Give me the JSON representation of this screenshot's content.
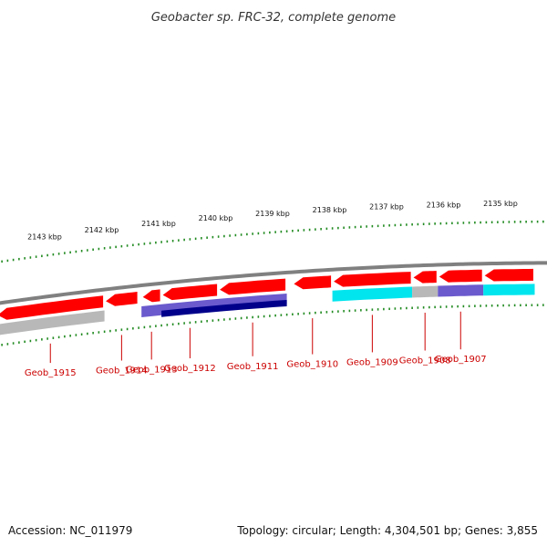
{
  "title": "Geobacter sp. FRC-32, complete genome",
  "footer": {
    "accession": "Accession: NC_011979",
    "summary": "Topology: circular; Length: 4,304,501 bp; Genes: 3,855"
  },
  "scale": {
    "unit": "kbp",
    "ticks": [
      {
        "kbp": 2143,
        "label": "2143 kbp"
      },
      {
        "kbp": 2142,
        "label": "2142 kbp"
      },
      {
        "kbp": 2141,
        "label": "2141 kbp"
      },
      {
        "kbp": 2140,
        "label": "2140 kbp"
      },
      {
        "kbp": 2139,
        "label": "2139 kbp"
      },
      {
        "kbp": 2138,
        "label": "2138 kbp"
      },
      {
        "kbp": 2137,
        "label": "2137 kbp"
      },
      {
        "kbp": 2136,
        "label": "2136 kbp"
      },
      {
        "kbp": 2135,
        "label": "2135 kbp"
      }
    ]
  },
  "genes": [
    {
      "label": "Geob_1915",
      "start_kbp": 2143.85,
      "end_kbp": 2141.95,
      "color": "#ff0000"
    },
    {
      "label": "Geob_1914",
      "start_kbp": 2141.95,
      "end_kbp": 2141.35,
      "color": "#ff0000"
    },
    {
      "label": "Geob_1913",
      "start_kbp": 2141.3,
      "end_kbp": 2140.95,
      "color": "#ff0000"
    },
    {
      "label": "Geob_1912",
      "start_kbp": 2140.95,
      "end_kbp": 2139.95,
      "color": "#ff0000"
    },
    {
      "label": "Geob_1911",
      "start_kbp": 2139.95,
      "end_kbp": 2138.75,
      "color": "#ff0000"
    },
    {
      "label": "Geob_1910",
      "start_kbp": 2138.65,
      "end_kbp": 2137.95,
      "color": "#ff0000"
    },
    {
      "label": "Geob_1909",
      "start_kbp": 2137.95,
      "end_kbp": 2136.55,
      "color": "#ff0000"
    },
    {
      "label": "Geob_1908",
      "start_kbp": 2136.55,
      "end_kbp": 2136.1,
      "color": "#ff0000"
    },
    {
      "label": "Geob_1907",
      "start_kbp": 2136.1,
      "end_kbp": 2135.3,
      "color": "#ff0000"
    },
    {
      "label": "",
      "start_kbp": 2135.3,
      "end_kbp": 2134.4,
      "color": "#ff0000"
    }
  ],
  "annotations": [
    {
      "start_kbp": 2143.85,
      "end_kbp": 2141.95,
      "row": 0,
      "color": "#b8b8b8"
    },
    {
      "start_kbp": 2141.3,
      "end_kbp": 2138.75,
      "row": 0,
      "color": "#6a5acd"
    },
    {
      "start_kbp": 2140.95,
      "end_kbp": 2138.75,
      "row": 1,
      "color": "#00008b"
    },
    {
      "start_kbp": 2137.95,
      "end_kbp": 2136.55,
      "row": 0,
      "color": "#00e5ee"
    },
    {
      "start_kbp": 2136.55,
      "end_kbp": 2136.1,
      "row": 0,
      "color": "#b8b8b8"
    },
    {
      "start_kbp": 2136.1,
      "end_kbp": 2135.3,
      "row": 0,
      "color": "#6a5acd"
    },
    {
      "start_kbp": 2135.3,
      "end_kbp": 2134.4,
      "row": 0,
      "color": "#00e5ee"
    }
  ],
  "colors": {
    "backbone": "#808080",
    "tick": "#228b22",
    "gene_label": "#cc0000",
    "leader": "#cc0000"
  }
}
